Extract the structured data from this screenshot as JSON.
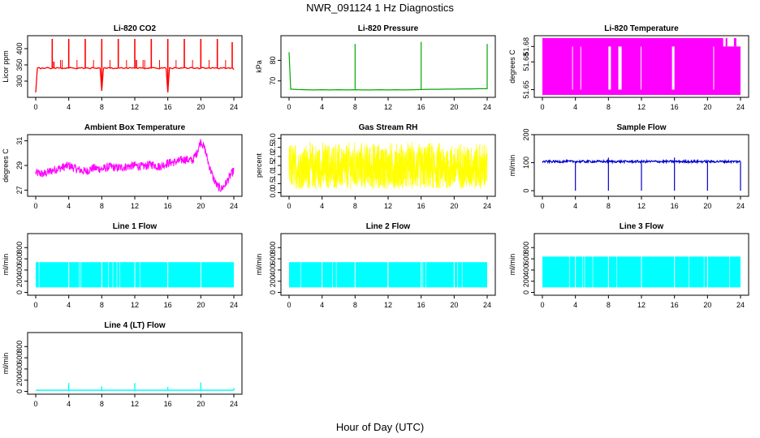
{
  "title": "NWR_091124  1 Hz Diagnostics",
  "xlabel": "Hour of Day (UTC)",
  "chart_data": [
    {
      "type": "line",
      "title": "Li-820 CO2",
      "ylabel": "Licor ppm",
      "color": "#ff0000",
      "xlim": [
        0,
        24
      ],
      "xticks": [
        "0",
        "4",
        "8",
        "12",
        "16",
        "20",
        "24"
      ],
      "ylim": [
        250,
        440
      ],
      "yticks": [
        "300",
        "350",
        "400"
      ],
      "series": [
        {
          "x": [
            0,
            0.2,
            0.4,
            0.6,
            0.8,
            1.0,
            1.2,
            1.4,
            1.6,
            1.8,
            2.0,
            2.2,
            2.4,
            2.6,
            2.8,
            3.0,
            3.2,
            3.4,
            3.6,
            3.8,
            4.0,
            4.2,
            4.4,
            4.6,
            4.8,
            5.0,
            5.2,
            5.4,
            5.6,
            5.8,
            6.0,
            6.2,
            6.4,
            6.6,
            6.8,
            7.0,
            7.2,
            7.4,
            7.6,
            7.8,
            8.0,
            8.2,
            8.4,
            8.6,
            8.8,
            9.0,
            9.2,
            9.4,
            9.6,
            9.8,
            10.0,
            10.2,
            10.4,
            10.6,
            10.8,
            11.0,
            11.2,
            11.4,
            11.6,
            11.8,
            12.0,
            12.2,
            12.4,
            12.6,
            12.8,
            13.0,
            13.2,
            13.4,
            13.6,
            13.8,
            14.0,
            14.2,
            14.4,
            14.6,
            14.8,
            15.0,
            15.2,
            15.4,
            15.6,
            15.8,
            16.0,
            16.2,
            16.4,
            16.6,
            16.8,
            17.0,
            17.2,
            17.4,
            17.6,
            17.8,
            18.0,
            18.2,
            18.4,
            18.6,
            18.8,
            19.0,
            19.2,
            19.4,
            19.6,
            19.8,
            20.0,
            20.2,
            20.4,
            20.6,
            20.8,
            21.0,
            21.2,
            21.4,
            21.6,
            21.8,
            22.0,
            22.2,
            22.4,
            22.6,
            22.8,
            23.0,
            23.2,
            23.4,
            23.6,
            23.8,
            24.0
          ],
          "y": [
            265,
            340,
            342,
            338,
            341,
            339,
            340,
            342,
            341,
            338,
            340,
            341,
            339,
            342,
            340,
            341,
            338,
            340,
            339,
            341,
            340,
            342,
            341,
            340,
            339,
            338,
            341,
            340,
            342,
            339,
            340,
            341,
            340,
            338,
            342,
            341,
            340,
            339,
            341,
            340,
            270,
            340,
            341,
            339,
            342,
            340,
            341,
            338,
            340,
            339,
            341,
            340,
            342,
            339,
            340,
            341,
            339,
            342,
            340,
            341,
            340,
            341,
            339,
            342,
            340,
            341,
            338,
            340,
            339,
            341,
            340,
            342,
            341,
            340,
            339,
            338,
            341,
            340,
            342,
            339,
            265,
            341,
            340,
            338,
            342,
            341,
            340,
            339,
            341,
            340,
            342,
            341,
            339,
            340,
            342,
            341,
            339,
            340,
            341,
            338,
            340,
            342,
            341,
            339,
            340,
            341,
            339,
            342,
            340,
            341,
            340,
            338,
            341,
            340,
            342,
            339,
            340,
            341,
            339,
            342,
            335
          ]
        },
        {
          "name": "spikes",
          "x": [
            2,
            2.2,
            4,
            6,
            8,
            10,
            12,
            12.2,
            14,
            16,
            18,
            20,
            22,
            23.8
          ],
          "y": [
            430,
            360,
            430,
            430,
            430,
            430,
            430,
            365,
            430,
            430,
            430,
            430,
            430,
            420
          ]
        }
      ]
    },
    {
      "type": "line",
      "title": "Li-820 Pressure",
      "ylabel": "kPa",
      "color": "#00aa00",
      "xlim": [
        0,
        24
      ],
      "xticks": [
        "0",
        "4",
        "8",
        "12",
        "16",
        "20",
        "24"
      ],
      "ylim": [
        62,
        92
      ],
      "yticks": [
        "70",
        "80"
      ],
      "series": [
        {
          "x": [
            0,
            0.2,
            1,
            2,
            3,
            4,
            5,
            6,
            7,
            8,
            9,
            10,
            11,
            12,
            13,
            14,
            15,
            16,
            17,
            18,
            19,
            20,
            21,
            22,
            23,
            24
          ],
          "y": [
            84,
            66,
            65.8,
            65.7,
            65.6,
            65.7,
            65.6,
            65.7,
            65.6,
            65.7,
            65.6,
            65.6,
            65.7,
            65.6,
            65.7,
            65.6,
            65.7,
            65.8,
            65.9,
            65.9,
            66,
            66,
            66.1,
            66.1,
            66.2,
            66.2
          ]
        },
        {
          "name": "spikes",
          "x": [
            8,
            16,
            24
          ],
          "y": [
            88,
            89,
            88
          ]
        }
      ]
    },
    {
      "type": "line",
      "title": "Li-820 Temperature",
      "ylabel": "degrees C",
      "color": "#ff00ff",
      "xlim": [
        0,
        24
      ],
      "xticks": [
        "0",
        "4",
        "8",
        "12",
        "16",
        "20",
        "24"
      ],
      "ylim": [
        51.645,
        51.685
      ],
      "yticks": [
        "51.65",
        "51.68",
        "51.68"
      ],
      "series": []
    },
    {
      "type": "line",
      "title": "Ambient Box Temperature",
      "ylabel": "degrees C",
      "color": "#ff00ff",
      "xlim": [
        0,
        24
      ],
      "xticks": [
        "0",
        "4",
        "8",
        "12",
        "16",
        "20",
        "24"
      ],
      "ylim": [
        26.5,
        31.5
      ],
      "yticks": [
        "27",
        "29",
        "31"
      ],
      "series": [
        {
          "x": [
            0,
            1,
            2,
            3,
            4,
            5,
            6,
            7,
            8,
            9,
            10,
            11,
            12,
            13,
            14,
            15,
            16,
            17,
            18,
            19,
            19.5,
            20,
            20.5,
            21,
            21.5,
            22,
            22.5,
            23,
            23.5,
            24
          ],
          "y": [
            28.4,
            28.3,
            28.6,
            28.8,
            29.0,
            28.7,
            28.5,
            28.8,
            28.7,
            28.9,
            28.8,
            28.9,
            29.0,
            28.9,
            29.1,
            28.9,
            29.2,
            29.3,
            29.5,
            29.4,
            30.0,
            31.0,
            30.3,
            29.0,
            28.0,
            27.3,
            27.1,
            27.5,
            28.1,
            28.6
          ]
        }
      ]
    },
    {
      "type": "line",
      "title": "Gas Stream RH",
      "ylabel": "percent",
      "color": "#ffff00",
      "xlim": [
        0,
        24
      ],
      "xticks": [
        "0",
        "4",
        "8",
        "12",
        "16",
        "20",
        "24"
      ],
      "ylim": [
        -0.2,
        3.2
      ],
      "yticks": [
        "0.0",
        "0.5",
        "1.0",
        "1.5",
        "2.0",
        "2.5",
        "3.0"
      ],
      "series": []
    },
    {
      "type": "line",
      "title": "Sample Flow",
      "ylabel": "ml/min",
      "color": "#0000cc",
      "xlim": [
        0,
        24
      ],
      "xticks": [
        "0",
        "4",
        "8",
        "12",
        "16",
        "20",
        "24"
      ],
      "ylim": [
        -20,
        200
      ],
      "yticks": [
        "0",
        "100",
        "200"
      ],
      "series": [
        {
          "x": [
            0,
            4,
            8,
            12,
            16,
            20,
            24
          ],
          "y": [
            106,
            104,
            104,
            103,
            103,
            103,
            103
          ]
        },
        {
          "name": "dips",
          "x": [
            4,
            8,
            12,
            16,
            20,
            24
          ],
          "y": [
            0,
            0,
            0,
            0,
            0,
            0
          ]
        }
      ]
    },
    {
      "type": "line",
      "title": "Line 1 Flow",
      "ylabel": "ml/min",
      "color": "#00ffff",
      "xlim": [
        0,
        24
      ],
      "xticks": [
        "0",
        "4",
        "8",
        "12",
        "16",
        "20",
        "24"
      ],
      "ylim": [
        -50,
        1050
      ],
      "yticks": [
        "0",
        "200",
        "400",
        "600",
        "800"
      ],
      "series": []
    },
    {
      "type": "line",
      "title": "Line 2 Flow",
      "ylabel": "ml/min",
      "color": "#00ffff",
      "xlim": [
        0,
        24
      ],
      "xticks": [
        "0",
        "4",
        "8",
        "12",
        "16",
        "20",
        "24"
      ],
      "ylim": [
        -50,
        1050
      ],
      "yticks": [
        "0",
        "200",
        "400",
        "600",
        "800"
      ],
      "series": []
    },
    {
      "type": "line",
      "title": "Line 3 Flow",
      "ylabel": "ml/min",
      "color": "#00ffff",
      "xlim": [
        0,
        24
      ],
      "xticks": [
        "0",
        "4",
        "8",
        "12",
        "16",
        "20",
        "24"
      ],
      "ylim": [
        -50,
        1050
      ],
      "yticks": [
        "0",
        "200",
        "400",
        "600",
        "800"
      ],
      "series": []
    },
    {
      "type": "line",
      "title": "Line 4 (LT) Flow",
      "ylabel": "ml/min",
      "color": "#00ffff",
      "xlim": [
        0,
        24
      ],
      "xticks": [
        "0",
        "4",
        "8",
        "12",
        "16",
        "20",
        "24"
      ],
      "ylim": [
        -50,
        1050
      ],
      "yticks": [
        "0",
        "200",
        "400",
        "600",
        "800"
      ],
      "series": [
        {
          "x": [
            0,
            24
          ],
          "y": [
            20,
            20
          ]
        },
        {
          "name": "spikes",
          "x": [
            4,
            8,
            12,
            16,
            20,
            24
          ],
          "y": [
            150,
            90,
            150,
            80,
            160,
            60
          ]
        }
      ]
    }
  ]
}
